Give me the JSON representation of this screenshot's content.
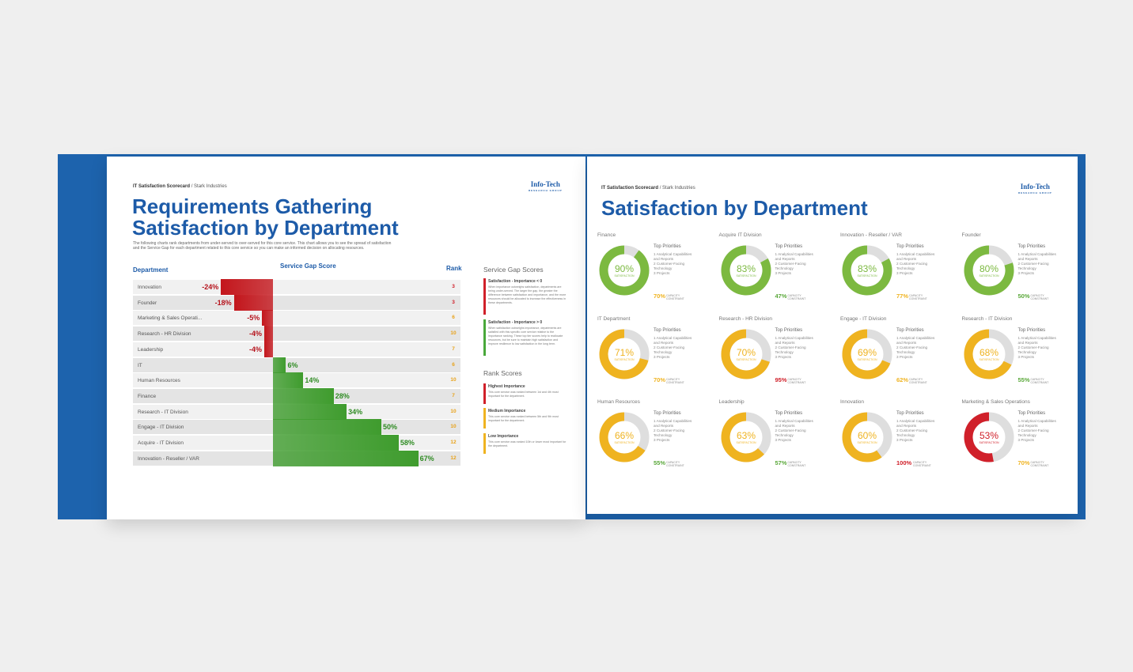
{
  "left_page": {
    "header": {
      "scorecard": "IT Satisfaction Scorecard",
      "company": "Stark Industries"
    },
    "logo": {
      "name": "Info-Tech",
      "sub": "Research Group"
    },
    "title": "Requirements Gathering Satisfaction by Department",
    "description": "The following charts rank departments from under-served to over-served for this core service. This chart allows you to see the spread of satisfaction and the Service Gap for each department related to this core service so you can make an informed decision on allocating resources.",
    "gap_chart": {
      "columns": [
        "Department",
        "Service Gap Score",
        "Rank"
      ],
      "negative_color": "#c3161c",
      "positive_color": "#3f9c2e",
      "rows": [
        {
          "department": "Innovation",
          "gap": -24,
          "gap_label": "-24%",
          "rank": 3,
          "rank_color": "#d0202a"
        },
        {
          "department": "Founder",
          "gap": -18,
          "gap_label": "-18%",
          "rank": 3,
          "rank_color": "#d0202a"
        },
        {
          "department": "Marketing & Sales Operati...",
          "gap": -5,
          "gap_label": "-5%",
          "rank": 6,
          "rank_color": "#e8a21a"
        },
        {
          "department": "Research - HR Division",
          "gap": -4,
          "gap_label": "-4%",
          "rank": 10,
          "rank_color": "#e8a21a"
        },
        {
          "department": "Leadership",
          "gap": -4,
          "gap_label": "-4%",
          "rank": 7,
          "rank_color": "#e8a21a"
        },
        {
          "department": "IT",
          "gap": 6,
          "gap_label": "6%",
          "rank": 6,
          "rank_color": "#e8a21a"
        },
        {
          "department": "Human Resources",
          "gap": 14,
          "gap_label": "14%",
          "rank": 10,
          "rank_color": "#e8a21a"
        },
        {
          "department": "Finance",
          "gap": 28,
          "gap_label": "28%",
          "rank": 7,
          "rank_color": "#e8a21a"
        },
        {
          "department": "Research - IT Division",
          "gap": 34,
          "gap_label": "34%",
          "rank": 10,
          "rank_color": "#e8a21a"
        },
        {
          "department": "Engage - IT Division",
          "gap": 50,
          "gap_label": "50%",
          "rank": 10,
          "rank_color": "#e8a21a"
        },
        {
          "department": "Acquire - IT Division",
          "gap": 58,
          "gap_label": "58%",
          "rank": 12,
          "rank_color": "#e8a21a"
        },
        {
          "department": "Innovation - Reseller / VAR",
          "gap": 67,
          "gap_label": "67%",
          "rank": 12,
          "rank_color": "#e8a21a"
        }
      ]
    },
    "legend": {
      "gap_title": "Service Gap Scores",
      "gap_items": [
        {
          "label": "Satisfaction - Importance < 0",
          "text": "When importance outweighs satisfaction, departments are being under-served. The larger the gap, the greater the difference between satisfaction and importance, and the more resources should be allocated to increase the effectiveness in these departments.",
          "color": "#d0202a"
        },
        {
          "label": "Satisfaction - Importance > 0",
          "text": "When satisfaction outweighs importance, departments are satisfied with this specific core service relative to the importance ranking. These top tier scores help to reallocate resources, but be sure to maintain high satisfaction and improve resilience to low satisfaction in the long term.",
          "color": "#49a83a"
        }
      ],
      "rank_title": "Rank Scores",
      "rank_items": [
        {
          "label": "Highest Importance",
          "text": "This core service was ranked between 1st and 4th most important for the department.",
          "color": "#d0202a"
        },
        {
          "label": "Medium Importance",
          "text": "This core service was ranked between 5th and 9th most important for the department.",
          "color": "#efb320"
        },
        {
          "label": "Low Importance",
          "text": "This core service was ranked 10th or lower most important for the department.",
          "color": "#efb320"
        }
      ]
    }
  },
  "right_page": {
    "header": {
      "scorecard": "IT Satisfaction Scorecard",
      "company": "Stark Industries"
    },
    "logo": {
      "name": "Info-Tech",
      "sub": "Research Group"
    },
    "title": "Satisfaction by Department",
    "satisfaction_label": "Satisfaction",
    "priorities_title": "Top Priorities",
    "priorities": [
      "1  Analytical Capabilities and Reports",
      "2  Customer-Facing Technology",
      "3  Projects"
    ],
    "capacity_text": "Capacity Constraint",
    "cards": [
      {
        "department": "Finance",
        "satisfaction": 90,
        "satisfaction_label": "90%",
        "color": "#7cb940",
        "capacity": "70%",
        "capacity_color": "#efb320"
      },
      {
        "department": "Acquire IT Division",
        "satisfaction": 83,
        "satisfaction_label": "83%",
        "color": "#7cb940",
        "capacity": "47%",
        "capacity_color": "#5aa83a"
      },
      {
        "department": "Innovation - Reseller / VAR",
        "satisfaction": 83,
        "satisfaction_label": "83%",
        "color": "#7cb940",
        "capacity": "77%",
        "capacity_color": "#efb320"
      },
      {
        "department": "Founder",
        "satisfaction": 80,
        "satisfaction_label": "80%",
        "color": "#7cb940",
        "capacity": "50%",
        "capacity_color": "#5aa83a"
      },
      {
        "department": "IT Department",
        "satisfaction": 71,
        "satisfaction_label": "71%",
        "color": "#efb320",
        "capacity": "70%",
        "capacity_color": "#efb320"
      },
      {
        "department": "Research - HR Division",
        "satisfaction": 70,
        "satisfaction_label": "70%",
        "color": "#efb320",
        "capacity": "95%",
        "capacity_color": "#d0202a"
      },
      {
        "department": "Engage - IT Division",
        "satisfaction": 69,
        "satisfaction_label": "69%",
        "color": "#efb320",
        "capacity": "62%",
        "capacity_color": "#efb320"
      },
      {
        "department": "Research - IT Division",
        "satisfaction": 68,
        "satisfaction_label": "68%",
        "color": "#efb320",
        "capacity": "55%",
        "capacity_color": "#5aa83a"
      },
      {
        "department": "Human Resources",
        "satisfaction": 66,
        "satisfaction_label": "66%",
        "color": "#efb320",
        "capacity": "55%",
        "capacity_color": "#5aa83a"
      },
      {
        "department": "Leadership",
        "satisfaction": 63,
        "satisfaction_label": "63%",
        "color": "#efb320",
        "capacity": "57%",
        "capacity_color": "#5aa83a"
      },
      {
        "department": "Innovation",
        "satisfaction": 60,
        "satisfaction_label": "60%",
        "color": "#efb320",
        "capacity": "100%",
        "capacity_color": "#d0202a"
      },
      {
        "department": "Marketing & Sales Operations",
        "satisfaction": 53,
        "satisfaction_label": "53%",
        "color": "#d0202a",
        "capacity": "70%",
        "capacity_color": "#efb320"
      }
    ]
  }
}
